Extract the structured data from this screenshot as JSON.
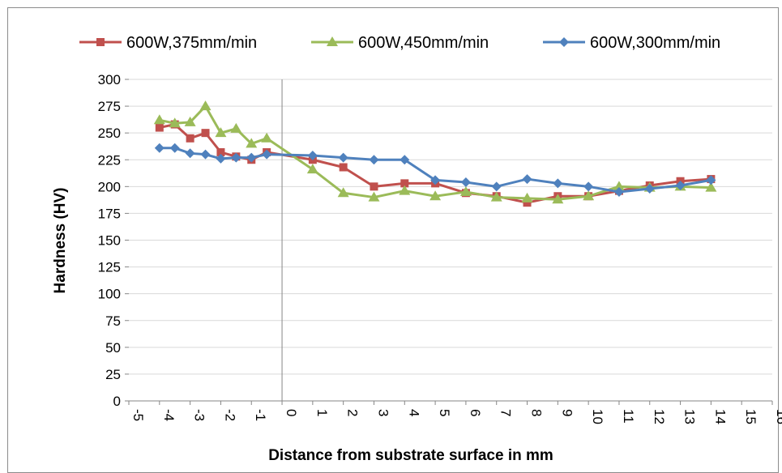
{
  "chart_data": {
    "type": "line",
    "xlabel": "Distance from substrate surface in mm",
    "ylabel": "Hardness (HV)",
    "xlim": [
      -5,
      16
    ],
    "ylim": [
      0,
      300
    ],
    "xticks": [
      -5,
      -4,
      -3,
      -2,
      -1,
      0,
      1,
      2,
      3,
      4,
      5,
      6,
      7,
      8,
      9,
      10,
      11,
      12,
      13,
      14,
      15,
      16
    ],
    "yticks": [
      0,
      25,
      50,
      75,
      100,
      125,
      150,
      175,
      200,
      225,
      250,
      275,
      300
    ],
    "grid": "horizontal",
    "legend_position": "top",
    "series": [
      {
        "name": "600W,375mm/min",
        "color": "#c0504d",
        "marker": "square",
        "x": [
          -4,
          -3.5,
          -3,
          -2.5,
          -2,
          -1.5,
          -1,
          -0.5,
          1,
          2,
          3,
          4,
          5,
          6,
          7,
          8,
          9,
          10,
          11,
          12,
          13,
          14
        ],
        "y": [
          255,
          258,
          245,
          250,
          232,
          228,
          225,
          232,
          225,
          218,
          200,
          203,
          203,
          194,
          191,
          185,
          191,
          191,
          196,
          201,
          205,
          207
        ]
      },
      {
        "name": "600W,450mm/min",
        "color": "#9bbb59",
        "marker": "triangle",
        "x": [
          -4,
          -3.5,
          -3,
          -2.5,
          -2,
          -1.5,
          -1,
          -0.5,
          1,
          2,
          3,
          4,
          5,
          6,
          7,
          8,
          9,
          10,
          11,
          12,
          13,
          14
        ],
        "y": [
          262,
          259,
          260,
          275,
          250,
          254,
          240,
          245,
          216,
          194,
          190,
          196,
          191,
          195,
          190,
          189,
          188,
          191,
          200,
          199,
          200,
          199
        ]
      },
      {
        "name": "600W,300mm/min",
        "color": "#4f81bd",
        "marker": "diamond",
        "x": [
          -4,
          -3.5,
          -3,
          -2.5,
          -2,
          -1.5,
          -1,
          -0.5,
          1,
          2,
          3,
          4,
          5,
          6,
          7,
          8,
          9,
          10,
          11,
          12,
          13,
          14
        ],
        "y": [
          236,
          236,
          231,
          230,
          226,
          227,
          227,
          230,
          229,
          227,
          225,
          225,
          206,
          204,
          200,
          207,
          203,
          200,
          195,
          198,
          201,
          206
        ]
      }
    ]
  }
}
